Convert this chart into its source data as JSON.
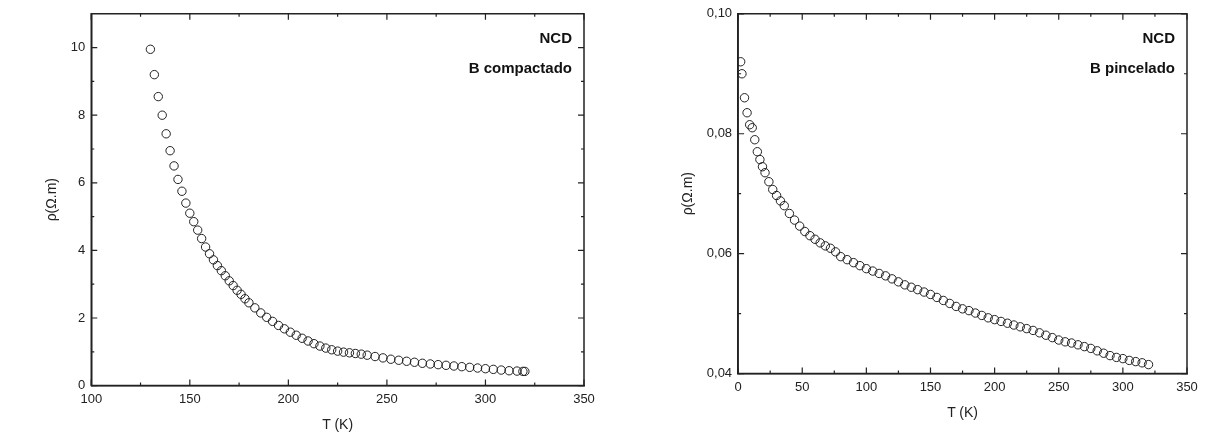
{
  "chart_data": [
    {
      "type": "scatter",
      "xlabel": "T (K)",
      "ylabel": "ρ(Ω.m)",
      "annotations": [
        "NCD",
        "B compactado"
      ],
      "marker": "circle",
      "grid": false,
      "legend": false,
      "xlim": [
        100,
        350
      ],
      "xticks": [
        100,
        150,
        200,
        250,
        300,
        350
      ],
      "ylim": [
        0,
        11
      ],
      "yticks": [
        0,
        2,
        4,
        6,
        8,
        10
      ],
      "series": [
        {
          "color": "#222222",
          "x": [
            130,
            132,
            134,
            136,
            138,
            140,
            142,
            144,
            146,
            148,
            150,
            152,
            154,
            156,
            158,
            160,
            162,
            164,
            166,
            168,
            170,
            172,
            174,
            176,
            178,
            180,
            183,
            186,
            189,
            192,
            195,
            198,
            201,
            204,
            207,
            210,
            213,
            216,
            219,
            222,
            225,
            228,
            231,
            234,
            237,
            240,
            244,
            248,
            252,
            256,
            260,
            264,
            268,
            272,
            276,
            280,
            284,
            288,
            292,
            296,
            300,
            304,
            308,
            312,
            316,
            319,
            320
          ],
          "values": [
            9.95,
            9.2,
            8.55,
            8.0,
            7.45,
            6.95,
            6.5,
            6.1,
            5.75,
            5.4,
            5.1,
            4.85,
            4.6,
            4.35,
            4.1,
            3.9,
            3.72,
            3.55,
            3.4,
            3.25,
            3.1,
            2.96,
            2.82,
            2.7,
            2.57,
            2.45,
            2.3,
            2.15,
            2.02,
            1.9,
            1.78,
            1.68,
            1.58,
            1.49,
            1.4,
            1.32,
            1.24,
            1.17,
            1.11,
            1.06,
            1.02,
            0.99,
            0.97,
            0.95,
            0.93,
            0.9,
            0.86,
            0.82,
            0.78,
            0.75,
            0.72,
            0.69,
            0.66,
            0.64,
            0.62,
            0.6,
            0.58,
            0.56,
            0.54,
            0.52,
            0.5,
            0.48,
            0.46,
            0.44,
            0.43,
            0.42,
            0.42
          ]
        }
      ]
    },
    {
      "type": "scatter",
      "xlabel": "T (K)",
      "ylabel": "ρ(Ω.m)",
      "annotations": [
        "NCD",
        "B pincelado"
      ],
      "marker": "circle",
      "grid": false,
      "legend": false,
      "xlim": [
        0,
        350
      ],
      "xticks": [
        0,
        50,
        100,
        150,
        200,
        250,
        300,
        350
      ],
      "ylim": [
        0.04,
        0.1
      ],
      "yticks": [
        {
          "value": 0.04,
          "label": "0,04"
        },
        {
          "value": 0.06,
          "label": "0,06"
        },
        {
          "value": 0.08,
          "label": "0,08"
        },
        {
          "value": 0.1,
          "label": "0,10"
        }
      ],
      "series": [
        {
          "color": "#222222",
          "x": [
            2,
            3,
            5,
            7,
            9,
            11,
            13,
            15,
            17,
            19,
            21,
            24,
            27,
            30,
            33,
            36,
            40,
            44,
            48,
            52,
            56,
            60,
            64,
            68,
            72,
            76,
            80,
            85,
            90,
            95,
            100,
            105,
            110,
            115,
            120,
            125,
            130,
            135,
            140,
            145,
            150,
            155,
            160,
            165,
            170,
            175,
            180,
            185,
            190,
            195,
            200,
            205,
            210,
            215,
            220,
            225,
            230,
            235,
            240,
            245,
            250,
            255,
            260,
            265,
            270,
            275,
            280,
            285,
            290,
            295,
            300,
            305,
            310,
            315,
            320
          ],
          "values": [
            0.092,
            0.09,
            0.086,
            0.0835,
            0.0815,
            0.081,
            0.079,
            0.077,
            0.0757,
            0.0745,
            0.0735,
            0.072,
            0.0707,
            0.0697,
            0.0688,
            0.068,
            0.0667,
            0.0656,
            0.0646,
            0.0637,
            0.063,
            0.0624,
            0.0618,
            0.0613,
            0.0609,
            0.0603,
            0.0595,
            0.059,
            0.0585,
            0.058,
            0.0575,
            0.0571,
            0.0567,
            0.0563,
            0.0558,
            0.0553,
            0.0548,
            0.0544,
            0.054,
            0.0536,
            0.0532,
            0.0527,
            0.0522,
            0.0517,
            0.0512,
            0.0508,
            0.0505,
            0.0501,
            0.0497,
            0.0493,
            0.049,
            0.0487,
            0.0484,
            0.0481,
            0.0478,
            0.0475,
            0.0472,
            0.0468,
            0.0464,
            0.046,
            0.0456,
            0.0453,
            0.0451,
            0.0448,
            0.0445,
            0.0442,
            0.0438,
            0.0434,
            0.043,
            0.0427,
            0.0425,
            0.0422,
            0.042,
            0.0418,
            0.0415
          ]
        }
      ]
    }
  ]
}
